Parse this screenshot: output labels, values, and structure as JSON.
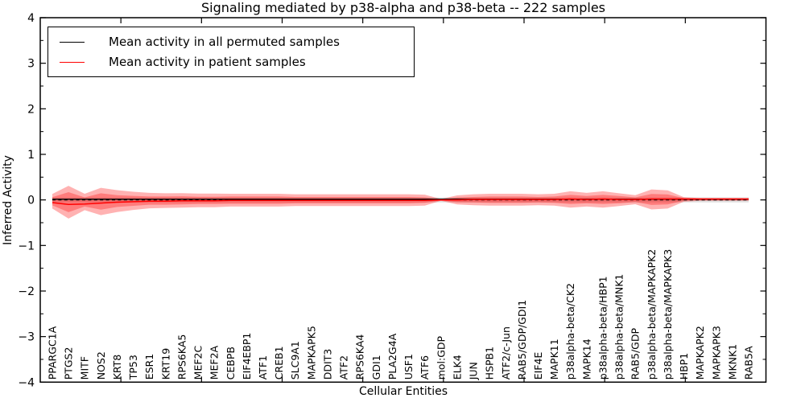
{
  "title": "Signaling mediated by p38-alpha and p38-beta -- 222 samples",
  "axes": {
    "ylabel": "Inferred Activity",
    "xlabel": "Cellular Entities",
    "yticks": [
      4,
      3,
      2,
      1,
      0,
      -1,
      -2,
      -3,
      -4
    ],
    "ylim": [
      -4,
      4
    ]
  },
  "legend": {
    "items": [
      {
        "label": "Mean activity in all permuted samples",
        "color": "#000000"
      },
      {
        "label": "Mean activity in patient samples",
        "color": "#ff0000"
      }
    ]
  },
  "chart_data": {
    "type": "area",
    "title": "Signaling mediated by p38-alpha and p38-beta -- 222 samples",
    "xlabel": "Cellular Entities",
    "ylabel": "Inferred Activity",
    "ylim": [
      -4,
      4
    ],
    "grid": false,
    "legend_position": "upper left",
    "categories": [
      "PPARGC1A",
      "PTGS2",
      "MITF",
      "NOS2",
      "KRT8",
      "TP53",
      "ESR1",
      "KRT19",
      "RPS6KA5",
      "MEF2C",
      "MEF2A",
      "CEBPB",
      "EIF4EBP1",
      "ATF1",
      "CREB1",
      "SLC9A1",
      "MAPKAPK5",
      "DDIT3",
      "ATF2",
      "RPS6KA4",
      "GDI1",
      "PLA2G4A",
      "USF1",
      "ATF6",
      "mol:GDP",
      "ELK4",
      "JUN",
      "HSPB1",
      "ATF2/c-Jun",
      "RAB5/GDP/GDI1",
      "EIF4E",
      "MAPK11",
      "p38alpha-beta/CK2",
      "MAPK14",
      "p38alpha-beta/HBP1",
      "p38alpha-beta/MNK1",
      "RAB5/GDP",
      "p38alpha-beta/MAPKAPK2",
      "p38alpha-beta/MAPKAPK3",
      "HBP1",
      "MAPKAPK2",
      "MAPKAPK3",
      "MKNK1",
      "RAB5A"
    ],
    "series": [
      {
        "name": "Mean activity in all permuted samples",
        "color": "#000000",
        "style": "solid",
        "values": [
          0.015,
          0.015,
          0.015,
          0.015,
          0.015,
          0.015,
          0.015,
          0.015,
          0.015,
          0.015,
          0.015,
          0.015,
          0.015,
          0.015,
          0.015,
          0.015,
          0.015,
          0.015,
          0.015,
          0.015,
          0.015,
          0.015,
          0.015,
          0.015,
          0.015,
          0.015,
          0.015,
          0.015,
          0.015,
          0.015,
          0.015,
          0.015,
          0.015,
          0.015,
          0.015,
          0.015,
          0.015,
          0.015,
          0.015,
          0.015,
          0.015,
          0.015,
          0.015,
          0.015
        ]
      },
      {
        "name": "Mean activity in patient samples",
        "color": "#ff0000",
        "style": "solid",
        "values": [
          -0.06,
          -0.1,
          -0.09,
          -0.07,
          -0.05,
          -0.04,
          -0.03,
          -0.03,
          -0.02,
          -0.02,
          -0.02,
          -0.01,
          -0.01,
          -0.01,
          -0.01,
          -0.01,
          -0.01,
          -0.01,
          -0.01,
          -0.01,
          -0.01,
          -0.01,
          -0.01,
          -0.01,
          0.0,
          0.0,
          0.01,
          0.01,
          0.01,
          0.01,
          0.01,
          0.01,
          0.02,
          0.01,
          0.02,
          0.01,
          0.01,
          0.02,
          0.02,
          0.02,
          0.02,
          0.02,
          0.02,
          0.02
        ]
      }
    ],
    "bands": {
      "outer_halfwidth": [
        0.16,
        0.36,
        0.18,
        0.3,
        0.24,
        0.2,
        0.17,
        0.16,
        0.16,
        0.15,
        0.15,
        0.14,
        0.14,
        0.14,
        0.14,
        0.13,
        0.13,
        0.13,
        0.13,
        0.13,
        0.13,
        0.13,
        0.13,
        0.12,
        0.02,
        0.1,
        0.12,
        0.13,
        0.13,
        0.13,
        0.12,
        0.13,
        0.18,
        0.15,
        0.18,
        0.14,
        0.1,
        0.22,
        0.2,
        0.05,
        0.03,
        0.03,
        0.03,
        0.03
      ],
      "inner_halfwidth": [
        0.09,
        0.22,
        0.1,
        0.18,
        0.13,
        0.11,
        0.09,
        0.09,
        0.09,
        0.08,
        0.08,
        0.08,
        0.08,
        0.08,
        0.08,
        0.07,
        0.07,
        0.07,
        0.07,
        0.07,
        0.07,
        0.07,
        0.07,
        0.06,
        0.01,
        0.05,
        0.06,
        0.07,
        0.07,
        0.07,
        0.06,
        0.07,
        0.1,
        0.08,
        0.1,
        0.08,
        0.05,
        0.12,
        0.11,
        0.03,
        0.015,
        0.015,
        0.015,
        0.015
      ],
      "permuted_halfwidth": 0.055,
      "fill_color": "#ff0000",
      "fill_alpha": 0.3,
      "permuted_fill_color": "#000000",
      "permuted_fill_alpha": 0.12
    },
    "zero_line": {
      "value": 0,
      "style": "dashed",
      "color": "#000000"
    }
  }
}
